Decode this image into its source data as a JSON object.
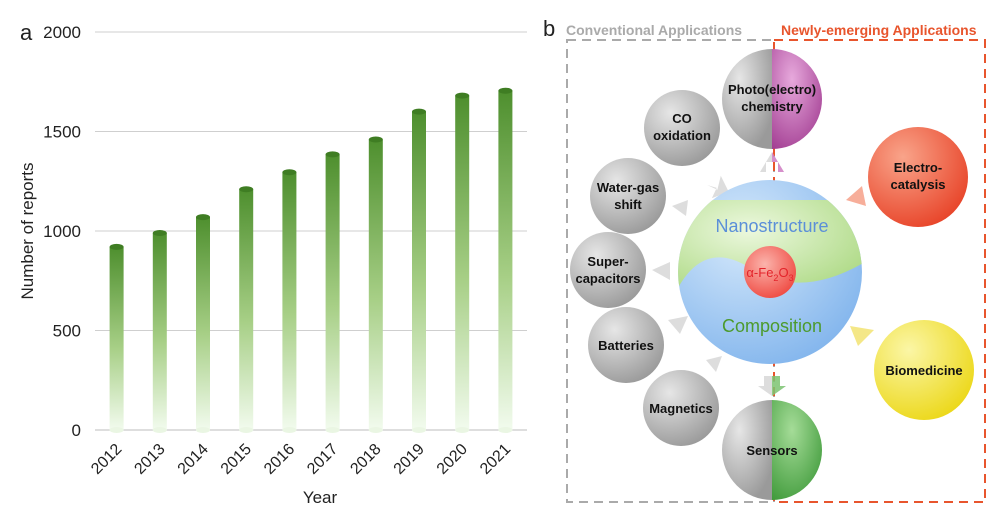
{
  "panel_a": {
    "label": "a",
    "chart_data": {
      "type": "bar",
      "categories": [
        "2012",
        "2013",
        "2014",
        "2015",
        "2016",
        "2017",
        "2018",
        "2019",
        "2020",
        "2021"
      ],
      "values": [
        920,
        990,
        1070,
        1210,
        1295,
        1385,
        1460,
        1600,
        1680,
        1705
      ],
      "xlabel": "Year",
      "ylabel": "Number of reports",
      "ylim": [
        0,
        2000
      ],
      "yticks": [
        0,
        500,
        1000,
        1500,
        2000
      ],
      "grid": true
    },
    "colors": {
      "bar_top": "#4e8f2e",
      "bar_bottom": "#f2fbee",
      "grid": "#cfcfcf"
    }
  },
  "panel_b": {
    "label": "b",
    "conventional_title": "Conventional Applications",
    "emerging_title": "Newly-emerging Applications",
    "center": {
      "nanostructure": "Nanostructure",
      "composition": "Composition",
      "material_base": "α-Fe",
      "material_sub1": "2",
      "material_mid": "O",
      "material_sub2": "3"
    },
    "conventional": {
      "co_line1": "CO",
      "co_line2": "oxidation",
      "wgs_line1": "Water-gas",
      "wgs_line2": "shift",
      "sc_line1": "Super-",
      "sc_line2": "capacitors",
      "batteries": "Batteries",
      "magnetics": "Magnetics"
    },
    "shared": {
      "photo_line1": "Photo(electro)",
      "photo_line2": "chemistry",
      "sensors": "Sensors"
    },
    "emerging": {
      "electro_line1": "Electro-",
      "electro_line2": "catalysis",
      "biomedicine": "Biomedicine"
    },
    "colors": {
      "conventional_gray": "#a9a9a9",
      "emerging_orange": "#e8552d",
      "nano_green": "#b2dc8e",
      "comp_blue": "#8fbff0",
      "core_red": "#f3554b",
      "purple": "#b54aa4",
      "sensor_green": "#4ea845",
      "yellow": "#f2e01e"
    }
  }
}
